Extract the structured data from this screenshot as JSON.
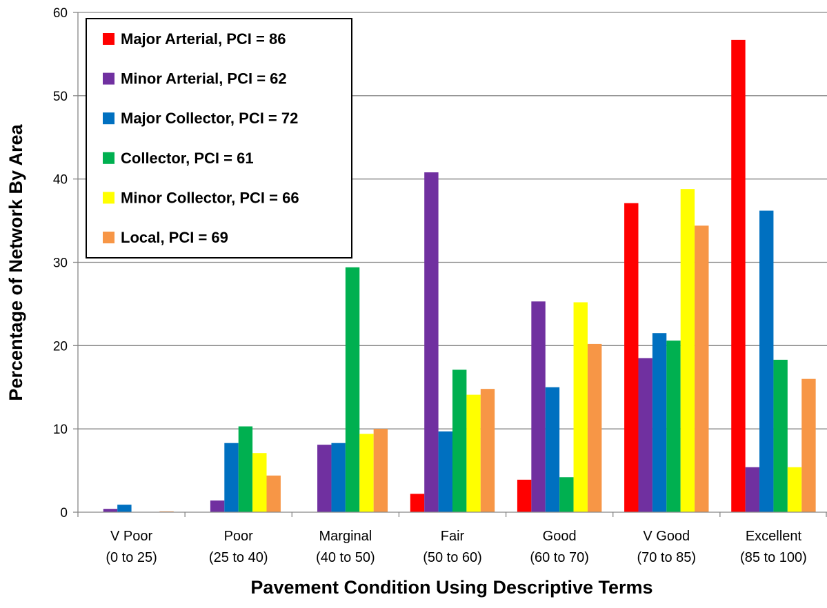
{
  "chart_data": {
    "type": "bar",
    "title": "",
    "xlabel": "Pavement Condition Using Descriptive Terms",
    "ylabel": "Percentage of Network By Area",
    "ylim": [
      0,
      60
    ],
    "yticks": [
      0,
      10,
      20,
      30,
      40,
      50,
      60
    ],
    "grid": true,
    "legend_position": "top-left",
    "categories": [
      {
        "line1": "V Poor",
        "line2": "(0 to 25)"
      },
      {
        "line1": "Poor",
        "line2": "(25 to 40)"
      },
      {
        "line1": "Marginal",
        "line2": "(40 to 50)"
      },
      {
        "line1": "Fair",
        "line2": "(50 to 60)"
      },
      {
        "line1": "Good",
        "line2": "(60 to 70)"
      },
      {
        "line1": "V Good",
        "line2": "(70 to 85)"
      },
      {
        "line1": "Excellent",
        "line2": "(85 to 100)"
      }
    ],
    "series": [
      {
        "name": "Major Arterial, PCI = 86",
        "color": "#ff0000",
        "values": [
          0,
          0,
          0,
          2.2,
          3.9,
          37.1,
          56.7
        ]
      },
      {
        "name": "Minor Arterial, PCI = 62",
        "color": "#7030a0",
        "values": [
          0.4,
          1.4,
          8.1,
          40.8,
          25.3,
          18.5,
          5.4
        ]
      },
      {
        "name": "Major Collector, PCI = 72",
        "color": "#0070c0",
        "values": [
          0.9,
          8.3,
          8.3,
          9.7,
          15.0,
          21.5,
          36.2
        ]
      },
      {
        "name": "Collector, PCI = 61",
        "color": "#00b050",
        "values": [
          0,
          10.3,
          29.4,
          17.1,
          4.2,
          20.6,
          18.3
        ]
      },
      {
        "name": "Minor Collector, PCI = 66",
        "color": "#ffff00",
        "values": [
          0,
          7.1,
          9.4,
          14.1,
          25.2,
          38.8,
          5.4
        ]
      },
      {
        "name": "Local, PCI = 69",
        "color": "#f79646",
        "values": [
          0.1,
          4.4,
          10.0,
          14.8,
          20.2,
          34.4,
          16.0
        ]
      }
    ]
  }
}
